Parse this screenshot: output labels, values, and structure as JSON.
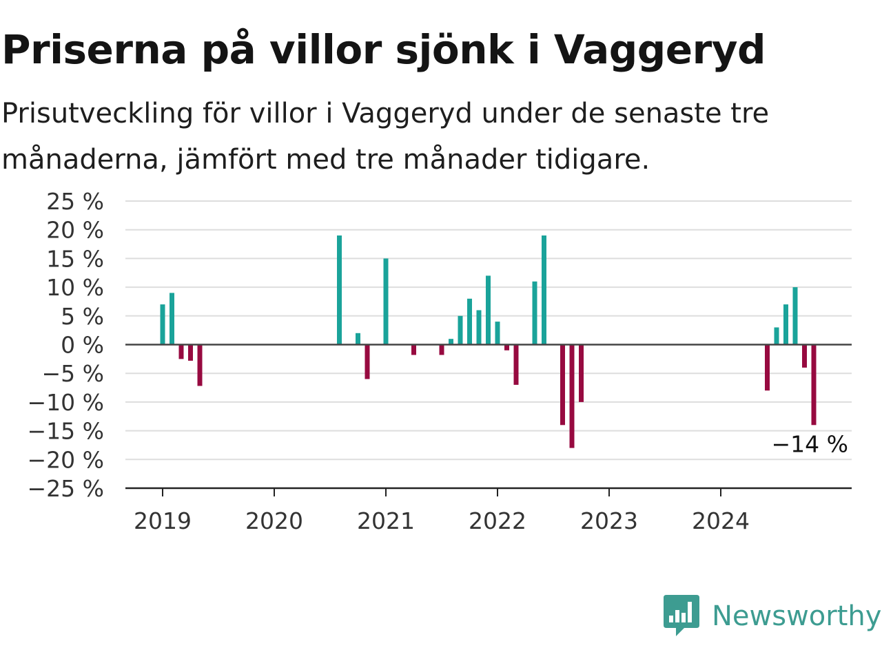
{
  "title": "Priserna på villor sjönk i Vaggeryd",
  "subtitle": "Prisutveckling för villor i Vaggeryd under de senaste tre månaderna, jämfört med tre månader tidigare.",
  "brand": {
    "name": "Newsworthy",
    "color": "#3d9c91",
    "icon": "newsworthy-logo-icon"
  },
  "colors": {
    "positive": "#1aa39a",
    "negative": "#970a40",
    "grid": "#dddddd",
    "zero_line": "#444444",
    "axis": "#222222"
  },
  "chart_data": {
    "type": "bar",
    "title": "Priserna på villor sjönk i Vaggeryd",
    "xlabel": "",
    "ylabel": "",
    "ylim": [
      -25,
      25
    ],
    "yticks": [
      25,
      20,
      15,
      10,
      5,
      0,
      -5,
      -10,
      -15,
      -20,
      -25
    ],
    "ytick_labels": [
      "25 %",
      "20 %",
      "15 %",
      "10 %",
      "5 %",
      "0 %",
      "−5 %",
      "−10 %",
      "−15 %",
      "−20 %",
      "−25 %"
    ],
    "xticks": [
      "2019",
      "2020",
      "2021",
      "2022",
      "2023",
      "2024"
    ],
    "grid": true,
    "values_by_month": [
      {
        "x": "2019-01",
        "y": 7
      },
      {
        "x": "2019-02",
        "y": 9
      },
      {
        "x": "2019-03",
        "y": -2.5
      },
      {
        "x": "2019-04",
        "y": -2.8
      },
      {
        "x": "2019-05",
        "y": -7.2
      },
      {
        "x": "2020-08",
        "y": 19
      },
      {
        "x": "2020-10",
        "y": 2
      },
      {
        "x": "2020-11",
        "y": -6
      },
      {
        "x": "2021-01",
        "y": 15
      },
      {
        "x": "2021-04",
        "y": -1.8
      },
      {
        "x": "2021-07",
        "y": -1.8
      },
      {
        "x": "2021-08",
        "y": 1
      },
      {
        "x": "2021-09",
        "y": 5
      },
      {
        "x": "2021-10",
        "y": 8
      },
      {
        "x": "2021-11",
        "y": 6
      },
      {
        "x": "2021-12",
        "y": 12
      },
      {
        "x": "2022-01",
        "y": 4
      },
      {
        "x": "2022-02",
        "y": -1
      },
      {
        "x": "2022-03",
        "y": -7
      },
      {
        "x": "2022-05",
        "y": 11
      },
      {
        "x": "2022-06",
        "y": 19
      },
      {
        "x": "2022-08",
        "y": -14
      },
      {
        "x": "2022-09",
        "y": -18
      },
      {
        "x": "2022-10",
        "y": -10
      },
      {
        "x": "2024-06",
        "y": -8
      },
      {
        "x": "2024-07",
        "y": 3
      },
      {
        "x": "2024-08",
        "y": 7
      },
      {
        "x": "2024-09",
        "y": 10
      },
      {
        "x": "2024-10",
        "y": -4
      },
      {
        "x": "2024-11",
        "y": -14
      }
    ],
    "annotation": {
      "x": "2024-11",
      "text": "−14 %"
    }
  }
}
